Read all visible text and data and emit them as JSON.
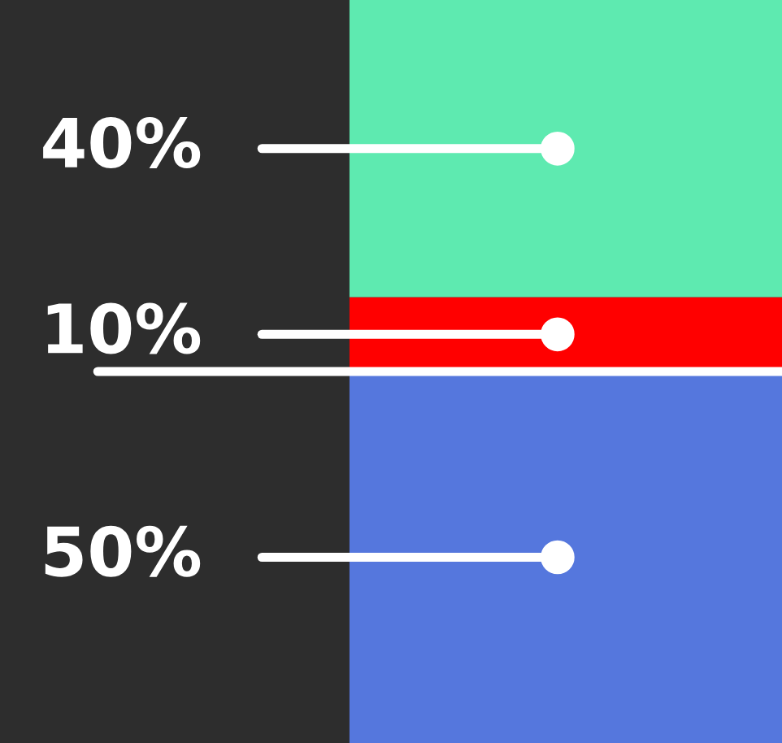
{
  "chart_data": {
    "type": "bar",
    "stacked": true,
    "categories": [
      null
    ],
    "series": [
      {
        "color": "#5577dd",
        "values": [
          50
        ],
        "value_labels": [
          "50%"
        ]
      },
      {
        "color": "#ff0000",
        "values": [
          10
        ],
        "value_labels": [
          "10%"
        ]
      },
      {
        "color": "#5eeab0",
        "values": [
          40
        ],
        "value_labels": [
          "40%"
        ]
      }
    ],
    "ref_lines": [
      {
        "axis": "y",
        "value": 50,
        "color": "#ffffff"
      }
    ],
    "legend": false
  }
}
